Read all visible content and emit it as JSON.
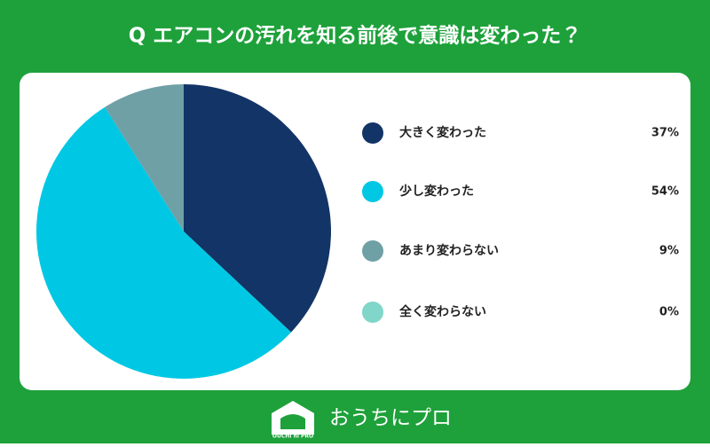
{
  "chart_data": {
    "type": "pie",
    "title": "Q エアコンの汚れを知る前後で意識は変わった？",
    "categories": [
      "大きく変わった",
      "少し変わった",
      "あまり変わらない",
      "全く変わらない"
    ],
    "values": [
      37,
      54,
      9,
      0
    ],
    "value_labels": [
      "37%",
      "54%",
      "9%",
      "0%"
    ],
    "colors": [
      "#123466",
      "#00c8e4",
      "#6fa0a6",
      "#7fd6c9"
    ],
    "legend": "right"
  },
  "brand": {
    "name": "おうちにプロ",
    "logo_text": "OUCHI ni PRO"
  }
}
